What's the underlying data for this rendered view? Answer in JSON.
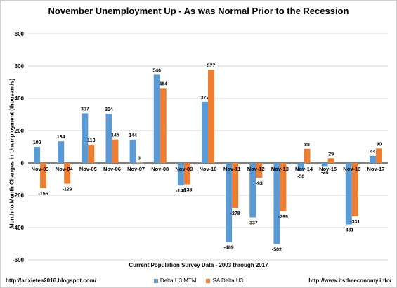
{
  "chart_data": {
    "type": "bar",
    "title": "November Unemployment Up - As was Normal Prior to the Recession",
    "xlabel": "Current Population Survey Data - 2003 through 2017",
    "ylabel": "Month to Month Changes in Unemployment (thousands)",
    "ylim": [
      -600,
      800
    ],
    "yticks": [
      -600,
      -400,
      -200,
      0,
      200,
      400,
      600,
      800
    ],
    "grid": true,
    "legend_position": "bottom",
    "categories": [
      "Nov-03",
      "Nov-04",
      "Nov-05",
      "Nov-06",
      "Nov-07",
      "Nov-08",
      "Nov-09",
      "Nov-10",
      "Nov-11",
      "Nov-12",
      "Nov-13",
      "Nov-14",
      "Nov-15",
      "Nov-16",
      "Nov-17"
    ],
    "series": [
      {
        "name": "Delta U3 MTM",
        "color": "#5b9bd5",
        "values": [
          100,
          134,
          307,
          304,
          144,
          546,
          -140,
          379,
          -489,
          -337,
          -502,
          -50,
          -24,
          -381,
          44
        ]
      },
      {
        "name": "SA Delta U3",
        "color": "#ed7d31",
        "values": [
          -156,
          -129,
          113,
          145,
          3,
          464,
          -133,
          577,
          -278,
          -93,
          -299,
          88,
          29,
          -331,
          90
        ]
      }
    ]
  },
  "footer": {
    "left": "http://anxietea2016.blogspot.com/",
    "right": "http://www.itstheeconomy.info/"
  },
  "colors": {
    "grid": "#d9d9d9",
    "axis": "#000000"
  }
}
